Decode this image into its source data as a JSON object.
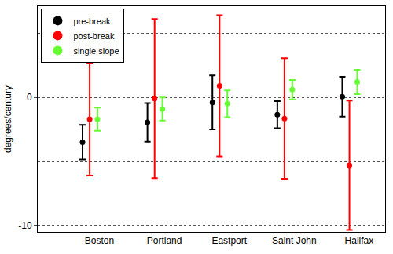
{
  "chart_data": {
    "type": "scatter",
    "y_label": "degrees/century",
    "categories": [
      "Boston",
      "Portland",
      "Eastport",
      "Saint John",
      "Halifax"
    ],
    "series": [
      {
        "name": "pre-break",
        "color": "#000000",
        "marker": "circle",
        "values": [
          -3.5,
          -1.95,
          -0.4,
          -1.35,
          0.05
        ],
        "errors": [
          1.35,
          1.5,
          2.1,
          1.05,
          1.55
        ]
      },
      {
        "name": "post-break",
        "color": "#ff0000",
        "marker": "circle",
        "values": [
          -1.7,
          -0.1,
          0.9,
          -1.65,
          -5.3
        ],
        "errors": [
          4.4,
          6.2,
          5.5,
          4.7,
          5.05
        ]
      },
      {
        "name": "single slope",
        "color": "#66ff33",
        "marker": "circle",
        "values": [
          -1.7,
          -0.9,
          -0.5,
          0.6,
          1.2
        ],
        "errors": [
          0.9,
          0.9,
          1.05,
          0.75,
          0.95
        ]
      }
    ],
    "ylim": [
      -10.5,
      7.1
    ],
    "yticks": [
      -10,
      0
    ],
    "grid": true,
    "legend": "top-left"
  }
}
